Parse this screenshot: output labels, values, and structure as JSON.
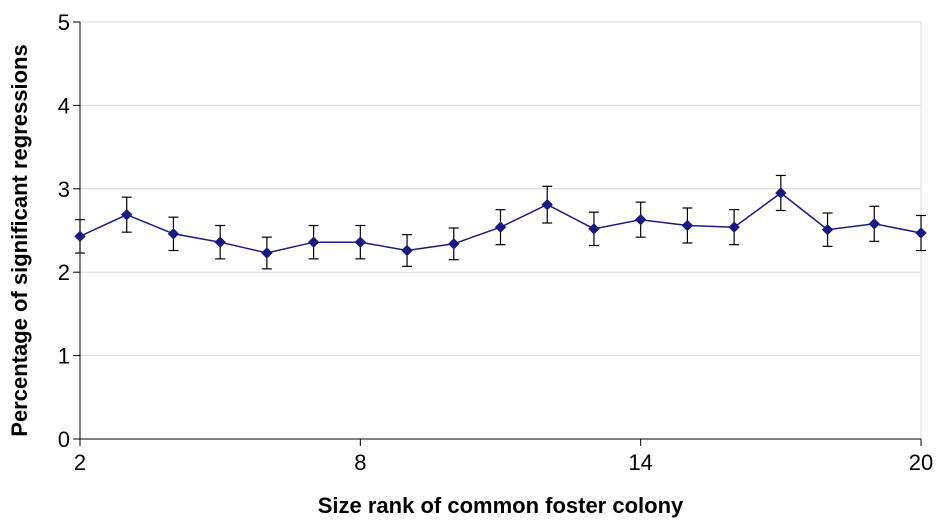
{
  "chart_data": {
    "type": "line",
    "title": "",
    "xlabel": "Size rank of common foster colony",
    "ylabel": "Percentage of significant regressions",
    "xlim": [
      2,
      20
    ],
    "ylim": [
      0,
      5
    ],
    "x_ticks": [
      "2",
      "8",
      "14",
      "20"
    ],
    "y_ticks": [
      "0",
      "1",
      "2",
      "3",
      "4",
      "5"
    ],
    "grid": "horizontal",
    "series": [
      {
        "color": "#1a1a80",
        "marker": "diamond",
        "x": [
          2,
          3,
          4,
          5,
          6,
          7,
          8,
          9,
          10,
          11,
          12,
          13,
          14,
          15,
          16,
          17,
          18,
          19,
          20
        ],
        "y": [
          2.43,
          2.69,
          2.46,
          2.36,
          2.23,
          2.36,
          2.36,
          2.26,
          2.34,
          2.54,
          2.81,
          2.52,
          2.63,
          2.56,
          2.54,
          2.95,
          2.51,
          2.58,
          2.47
        ],
        "err": [
          0.2,
          0.21,
          0.2,
          0.2,
          0.19,
          0.2,
          0.2,
          0.19,
          0.19,
          0.21,
          0.22,
          0.2,
          0.21,
          0.21,
          0.21,
          0.21,
          0.2,
          0.21,
          0.21
        ]
      }
    ]
  }
}
